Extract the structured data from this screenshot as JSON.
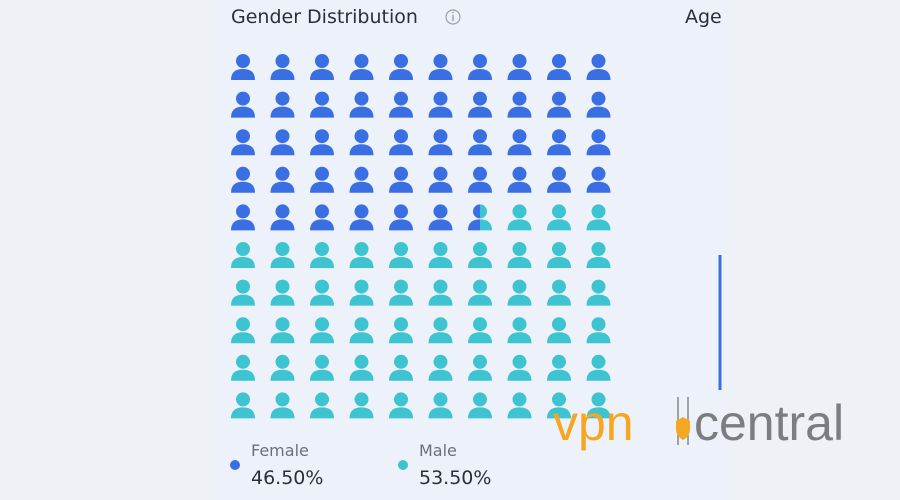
{
  "chart_data": {
    "type": "waffle",
    "title": "Gender Distribution",
    "series": [
      {
        "name": "Female",
        "color": "#3a6ee3",
        "values": [
          46.5
        ],
        "value_labels": [
          "46.50%"
        ]
      },
      {
        "name": "Male",
        "color": "#3ec3d1",
        "values": [
          53.5
        ],
        "value_labels": [
          "53.50%"
        ]
      }
    ]
  },
  "next_panel_title": "Age",
  "watermark": {
    "brand": "vpn",
    "rest": "central"
  }
}
